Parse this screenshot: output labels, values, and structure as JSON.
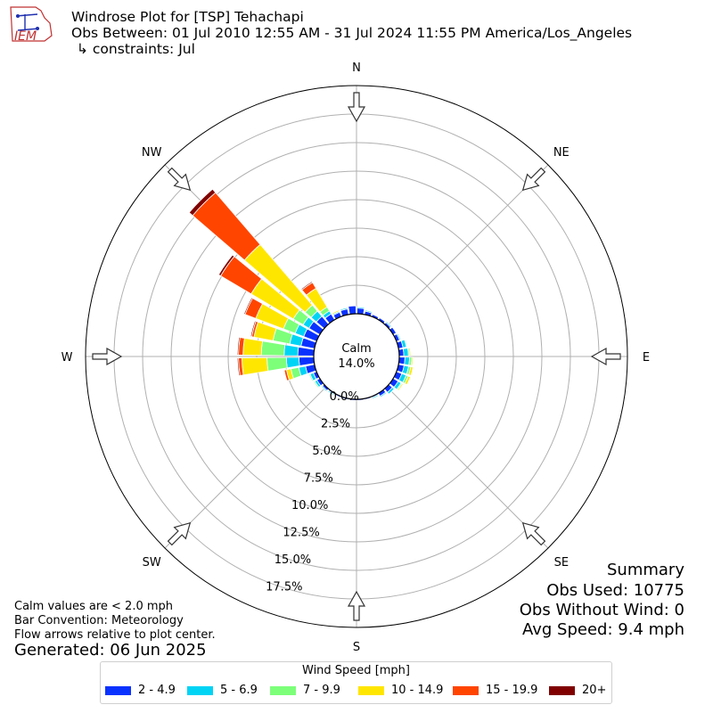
{
  "logo_text": "IEM",
  "header": {
    "title": "Windrose Plot for [TSP] Tehachapi",
    "obs_between": "Obs Between: 01 Jul 2010 12:55 AM - 31 Jul 2024 11:55 PM America/Los_Angeles",
    "constraints": "↳ constraints: Jul"
  },
  "notes": {
    "calm": "Calm values are < 2.0 mph",
    "convention": "Bar Convention: Meteorology",
    "flow": "Flow arrows relative to plot center.",
    "generated": "Generated: 06 Jun 2025"
  },
  "summary": {
    "title": "Summary",
    "obs_used": "Obs Used: 10775",
    "obs_without_wind": "Obs Without Wind: 0",
    "avg_speed": "Avg Speed: 9.4 mph"
  },
  "calm": {
    "label": "Calm",
    "value": "14.0%"
  },
  "compass": {
    "N": "N",
    "NE": "NE",
    "E": "E",
    "SE": "SE",
    "S": "S",
    "SW": "SW",
    "W": "W",
    "NW": "NW"
  },
  "colors": {
    "bin_2_4.9": "#0a32ff",
    "bin_5_6.9": "#00d4f5",
    "bin_7_9.9": "#7dff7a",
    "bin_10_14.9": "#ffe600",
    "bin_15_19.9": "#ff4500",
    "bin_20_plus": "#800000",
    "grid": "#b0b0b0"
  },
  "chart_data": {
    "type": "windrose",
    "legend_title": "Wind Speed [mph]",
    "legend_placement": "bottom-center",
    "calm_percent": 14.0,
    "radial_ticks": [
      "0.0%",
      "2.5%",
      "5.0%",
      "7.5%",
      "10.0%",
      "12.5%",
      "15.0%",
      "17.5%"
    ],
    "radial_tick_values": [
      0.0,
      2.5,
      5.0,
      7.5,
      10.0,
      12.5,
      15.0,
      17.5
    ],
    "rmax": 20,
    "grid": true,
    "speed_bins": [
      "2 - 4.9",
      "5 - 6.9",
      "7 - 9.9",
      "10 - 14.9",
      "15 - 19.9",
      "20+"
    ],
    "directions_deg": [
      5,
      15,
      25,
      35,
      45,
      55,
      65,
      75,
      85,
      95,
      105,
      115,
      125,
      135,
      145,
      155,
      165,
      175,
      185,
      195,
      205,
      215,
      225,
      235,
      245,
      255,
      265,
      275,
      285,
      295,
      305,
      315,
      325,
      335,
      345,
      355
    ],
    "cumulative_percent": {
      "2 - 4.9": [
        0.5,
        0.3,
        0.2,
        0.2,
        0.2,
        0.3,
        0.3,
        0.4,
        0.4,
        0.5,
        0.5,
        0.5,
        0.5,
        0.4,
        0.3,
        0.1,
        0.1,
        0.1,
        0.1,
        0.1,
        0.1,
        0.1,
        0.2,
        0.3,
        0.3,
        0.8,
        1.3,
        1.4,
        1.2,
        1.2,
        1.1,
        0.9,
        0.6,
        0.4,
        0.5,
        0.7
      ],
      "5 - 6.9": [
        0.6,
        0.4,
        0.2,
        0.2,
        0.3,
        0.3,
        0.4,
        0.7,
        0.8,
        0.9,
        0.9,
        0.9,
        0.8,
        0.6,
        0.4,
        0.2,
        0.1,
        0.1,
        0.1,
        0.1,
        0.1,
        0.2,
        0.3,
        0.5,
        0.6,
        1.4,
        2.4,
        2.6,
        2.2,
        2.0,
        1.7,
        1.5,
        0.9,
        0.5,
        0.6,
        0.7
      ],
      "7 - 9.9": [
        0.6,
        0.4,
        0.2,
        0.2,
        0.3,
        0.3,
        0.4,
        0.7,
        0.9,
        1.1,
        1.1,
        1.1,
        0.9,
        0.6,
        0.4,
        0.2,
        0.1,
        0.1,
        0.1,
        0.1,
        0.1,
        0.2,
        0.3,
        0.6,
        0.7,
        2.1,
        4.1,
        4.6,
        3.7,
        3.1,
        2.7,
        2.2,
        1.3,
        0.5,
        0.6,
        0.7
      ],
      "10 - 14.9": [
        0.6,
        0.4,
        0.2,
        0.2,
        0.3,
        0.3,
        0.4,
        0.7,
        1.0,
        1.2,
        1.3,
        1.3,
        1.0,
        0.6,
        0.4,
        0.2,
        0.1,
        0.1,
        0.1,
        0.1,
        0.1,
        0.2,
        0.3,
        0.6,
        0.7,
        2.5,
        6.3,
        6.2,
        5.4,
        5.7,
        7.0,
        9.2,
        3.2,
        0.6,
        0.6,
        0.7
      ],
      "15 - 19.9": [
        0.6,
        0.4,
        0.2,
        0.2,
        0.3,
        0.3,
        0.4,
        0.7,
        1.0,
        1.2,
        1.3,
        1.3,
        1.0,
        0.6,
        0.4,
        0.2,
        0.1,
        0.1,
        0.1,
        0.1,
        0.1,
        0.2,
        0.3,
        0.6,
        0.7,
        2.7,
        6.6,
        6.6,
        5.6,
        6.7,
        10.1,
        15.2,
        3.8,
        0.6,
        0.6,
        0.7
      ],
      "20+": [
        0.6,
        0.4,
        0.2,
        0.2,
        0.3,
        0.3,
        0.4,
        0.7,
        1.0,
        1.2,
        1.3,
        1.3,
        1.0,
        0.6,
        0.4,
        0.2,
        0.1,
        0.1,
        0.1,
        0.1,
        0.1,
        0.2,
        0.3,
        0.6,
        0.7,
        2.7,
        6.7,
        6.7,
        5.7,
        6.8,
        10.3,
        15.6,
        3.9,
        0.6,
        0.6,
        0.7
      ]
    }
  }
}
